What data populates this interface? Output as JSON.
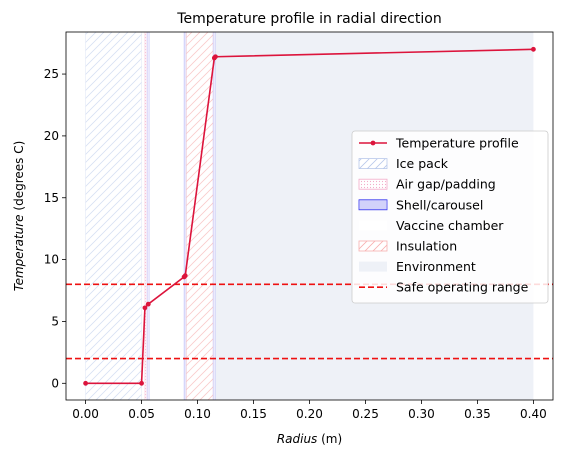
{
  "chart_data": {
    "type": "line",
    "title": "Temperature profile in radial direction",
    "xlabel": {
      "italic": "Radius",
      "unit": " (m)"
    },
    "ylabel": {
      "italic": "Temperature",
      "unit": " (degrees C)"
    },
    "xlim": [
      -0.0175,
      0.4175
    ],
    "ylim": [
      -1.35,
      28.4
    ],
    "xticks": [
      0.0,
      0.05,
      0.1,
      0.15,
      0.2,
      0.25,
      0.3,
      0.35,
      0.4
    ],
    "xtick_labels": [
      "0.00",
      "0.05",
      "0.10",
      "0.15",
      "0.20",
      "0.25",
      "0.30",
      "0.35",
      "0.40"
    ],
    "yticks": [
      0,
      5,
      10,
      15,
      20,
      25
    ],
    "ytick_labels": [
      "0",
      "5",
      "10",
      "15",
      "20",
      "25"
    ],
    "grid": false,
    "legend_position": "center-right",
    "series": [
      {
        "name": "Temperature profile",
        "color": "#dc143c",
        "marker": "circle",
        "x": [
          0.0,
          0.05,
          0.053,
          0.056,
          0.088,
          0.089,
          0.115,
          0.116,
          0.4
        ],
        "y": [
          0.0,
          0.0,
          6.1,
          6.4,
          8.6,
          8.7,
          26.3,
          26.4,
          27.0
        ]
      }
    ],
    "regions": [
      {
        "name": "Ice pack",
        "x0": 0.0,
        "x1": 0.05,
        "fill": "#ffffff",
        "stroke": "#b8c8ea",
        "hatch": "diag",
        "alpha": 0.55
      },
      {
        "name": "Air gap/padding",
        "x0": 0.053,
        "x1": 0.055,
        "fill": "#ffffff",
        "stroke": "#f3aac8",
        "hatch": "dots",
        "alpha": 0.7
      },
      {
        "name": "Shell/carousel",
        "x0": 0.055,
        "x1": 0.057,
        "fill": "#ffffff",
        "stroke": "#3030ee",
        "hatch": "vertical",
        "alpha": 0.45
      },
      {
        "name": "Vaccine chamber",
        "x0": 0.057,
        "x1": 0.088,
        "fill": "#ffffff",
        "stroke": "none",
        "hatch": "none",
        "alpha": 1.0
      },
      {
        "name": "Shell/carousel",
        "x0": 0.088,
        "x1": 0.09,
        "fill": "#ffffff",
        "stroke": "#3030ee",
        "hatch": "vertical",
        "alpha": 0.45
      },
      {
        "name": "Insulation",
        "x0": 0.09,
        "x1": 0.114,
        "fill": "#ffffff",
        "stroke": "#f7b0b0",
        "hatch": "diag",
        "alpha": 0.65
      },
      {
        "name": "Shell/carousel",
        "x0": 0.114,
        "x1": 0.116,
        "fill": "#ffffff",
        "stroke": "#3030ee",
        "hatch": "vertical",
        "alpha": 0.45
      },
      {
        "name": "Environment",
        "x0": 0.116,
        "x1": 0.4,
        "fill": "#eef1f7",
        "stroke": "none",
        "hatch": "none",
        "alpha": 1.0
      }
    ],
    "hlines": [
      {
        "name": "Safe operating range",
        "y": 8,
        "color": "#ee1111",
        "dash": "dashed"
      },
      {
        "name": "Safe operating range",
        "y": 2,
        "color": "#ee1111",
        "dash": "dashed"
      }
    ],
    "legend": [
      {
        "label": "Temperature profile",
        "kind": "line",
        "color": "#dc143c"
      },
      {
        "label": "Ice pack",
        "kind": "patch",
        "stroke": "#b8c8ea",
        "fill": "#ffffff",
        "hatch": "diag"
      },
      {
        "label": "Air gap/padding",
        "kind": "patch",
        "stroke": "#f3aac8",
        "fill": "#ffffff",
        "hatch": "dots"
      },
      {
        "label": "Shell/carousel",
        "kind": "patch",
        "stroke": "#3030ee",
        "fill": "#ffffff",
        "hatch": "vertical"
      },
      {
        "label": "Vaccine chamber",
        "kind": "patch",
        "stroke": "none",
        "fill": "#ffffff",
        "hatch": "none"
      },
      {
        "label": "Insulation",
        "kind": "patch",
        "stroke": "#f7b0b0",
        "fill": "#ffffff",
        "hatch": "diag"
      },
      {
        "label": "Environment",
        "kind": "patch",
        "stroke": "none",
        "fill": "#eef1f7",
        "hatch": "none"
      },
      {
        "label": "Safe operating range",
        "kind": "dash",
        "color": "#ee1111"
      }
    ]
  }
}
